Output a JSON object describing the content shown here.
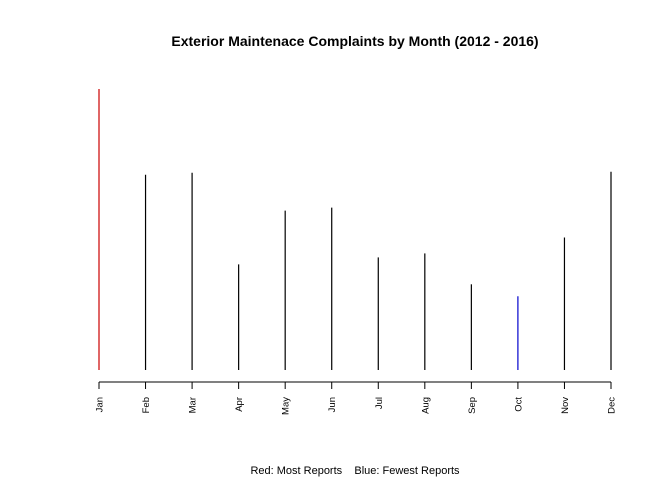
{
  "chart_data": {
    "type": "bar",
    "style": "spike",
    "title": "Exterior Maintenace Complaints by Month (2012 - 2016)",
    "xlabel": "",
    "ylabel": "",
    "categories": [
      "Jan",
      "Feb",
      "Mar",
      "Apr",
      "May",
      "Jun",
      "Jul",
      "Aug",
      "Sep",
      "Oct",
      "Nov",
      "Dec"
    ],
    "values": [
      282,
      196,
      198,
      106,
      160,
      163,
      113,
      117,
      86,
      74,
      133,
      199
    ],
    "ylim": [
      0,
      282
    ],
    "y_axis_shown": false,
    "grid": false,
    "colors": {
      "default": "#000000",
      "max": "#cc0000",
      "min": "#0000cc"
    },
    "note": "Red: Most Reports    Blue: Fewest Reports"
  }
}
